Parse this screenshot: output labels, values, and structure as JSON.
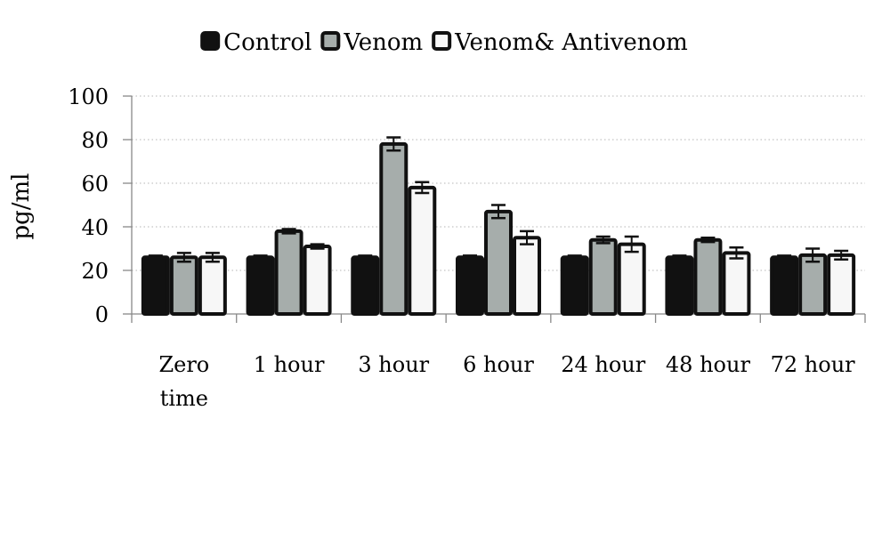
{
  "chart_data": {
    "type": "bar",
    "title": "",
    "xlabel": "",
    "ylabel": "pg/ml",
    "ylim": [
      0,
      100
    ],
    "yticks": [
      0,
      20,
      40,
      60,
      80,
      100
    ],
    "grid": "horizontal dotted",
    "legend_position": "top",
    "categories": [
      [
        "Zero",
        "time"
      ],
      [
        "1 hour"
      ],
      [
        "3 hour"
      ],
      [
        "6  hour"
      ],
      [
        "24 hour"
      ],
      [
        "48 hour"
      ],
      [
        "72 hour"
      ]
    ],
    "series": [
      {
        "name": "Control",
        "color": "#111111",
        "values": [
          26,
          26,
          26,
          26,
          26,
          26,
          26
        ],
        "errors": [
          0.8,
          0.8,
          0.8,
          0.8,
          0.8,
          0.8,
          0.8
        ]
      },
      {
        "name": "Venom",
        "color": "#a6adab",
        "values": [
          26,
          38,
          78,
          47,
          34,
          34,
          27
        ],
        "errors": [
          2,
          1,
          3,
          3,
          1.5,
          1,
          3
        ]
      },
      {
        "name": "Venom& Antivenom",
        "color": "#f7f7f7",
        "values": [
          26,
          31,
          58,
          35,
          32,
          28,
          27
        ],
        "errors": [
          2,
          1,
          2.5,
          3,
          3.5,
          2.5,
          2
        ]
      }
    ]
  }
}
